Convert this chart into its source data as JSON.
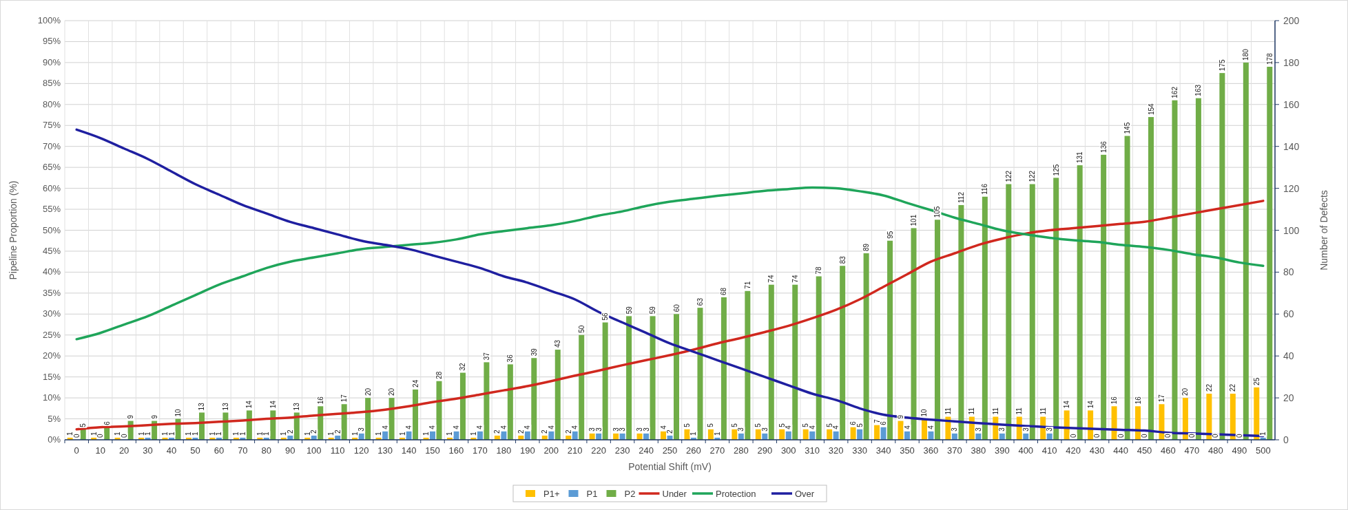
{
  "chart_data": {
    "type": "bar",
    "xlabel": "Potential Shift (mV)",
    "ylabel": "Pipeline Proportion (%)",
    "y2label": "Number of Defects",
    "categories": [
      "0",
      "10",
      "20",
      "30",
      "40",
      "50",
      "60",
      "70",
      "80",
      "90",
      "100",
      "110",
      "120",
      "130",
      "140",
      "150",
      "160",
      "170",
      "180",
      "190",
      "200",
      "210",
      "220",
      "230",
      "240",
      "250",
      "260",
      "270",
      "280",
      "290",
      "300",
      "310",
      "320",
      "330",
      "340",
      "350",
      "360",
      "370",
      "380",
      "390",
      "400",
      "410",
      "420",
      "430",
      "440",
      "450",
      "460",
      "470",
      "480",
      "490",
      "500"
    ],
    "ylim": [
      0,
      100
    ],
    "yticks": [
      {
        "value": 0,
        "label": "0%"
      },
      {
        "value": 5,
        "label": "5%"
      },
      {
        "value": 10,
        "label": "10%"
      },
      {
        "value": 15,
        "label": "15%"
      },
      {
        "value": 20,
        "label": "20%"
      },
      {
        "value": 25,
        "label": "25%"
      },
      {
        "value": 30,
        "label": "30%"
      },
      {
        "value": 35,
        "label": "35%"
      },
      {
        "value": 40,
        "label": "40%"
      },
      {
        "value": 45,
        "label": "45%"
      },
      {
        "value": 50,
        "label": "50%"
      },
      {
        "value": 55,
        "label": "55%"
      },
      {
        "value": 60,
        "label": "60%"
      },
      {
        "value": 65,
        "label": "65%"
      },
      {
        "value": 70,
        "label": "70%"
      },
      {
        "value": 75,
        "label": "75%"
      },
      {
        "value": 80,
        "label": "80%"
      },
      {
        "value": 85,
        "label": "85%"
      },
      {
        "value": 90,
        "label": "90%"
      },
      {
        "value": 95,
        "label": "95%"
      },
      {
        "value": 100,
        "label": "100%"
      }
    ],
    "y2lim": [
      0,
      200
    ],
    "y2ticks": [
      0,
      20,
      40,
      60,
      80,
      100,
      120,
      140,
      160,
      180,
      200
    ],
    "grid": true,
    "legend": "bottom",
    "series": [
      {
        "name": "P1+",
        "type": "bar",
        "axis": "y2",
        "color": "#ffc000",
        "values": [
          1,
          1,
          1,
          1,
          1,
          1,
          1,
          1,
          1,
          1,
          1,
          1,
          1,
          1,
          1,
          1,
          1,
          1,
          2,
          2,
          2,
          2,
          3,
          3,
          3,
          4,
          5,
          5,
          5,
          5,
          5,
          5,
          5,
          6,
          7,
          9,
          10,
          11,
          11,
          11,
          11,
          11,
          14,
          14,
          16,
          16,
          17,
          20,
          22,
          22,
          25
        ],
        "value_labels": [
          "1",
          "1",
          "1",
          "1",
          "1",
          "1",
          "1",
          "1",
          "1",
          "1",
          "1",
          "1",
          "1",
          "1",
          "1",
          "1",
          "1",
          "1",
          "2",
          "2",
          "2",
          "2",
          "3",
          "3",
          "3",
          "4",
          "5",
          "5",
          "5",
          "5",
          "5",
          "5",
          "5",
          "6",
          "7",
          "9",
          "10",
          "11",
          "11",
          "11",
          "11",
          "11",
          "14",
          "14",
          "16",
          "16",
          "17",
          "20",
          "22",
          "22",
          "25"
        ]
      },
      {
        "name": "P1",
        "type": "bar",
        "axis": "y2",
        "color": "#5b9bd5",
        "values": [
          0,
          0,
          0,
          1,
          1,
          1,
          1,
          1,
          1,
          2,
          2,
          2,
          3,
          4,
          4,
          4,
          4,
          4,
          4,
          4,
          4,
          4,
          3,
          3,
          3,
          2,
          1,
          1,
          3,
          3,
          4,
          4,
          4,
          5,
          6,
          4,
          4,
          3,
          3,
          3,
          3,
          3,
          0,
          0,
          0,
          0,
          0,
          0,
          0,
          0,
          1
        ],
        "value_labels": [
          "0",
          "0",
          "0",
          "1",
          "1",
          "1",
          "1",
          "1",
          "1",
          "2",
          "2",
          "2",
          "3",
          "4",
          "4",
          "4",
          "4",
          "4",
          "4",
          "4",
          "4",
          "4",
          "3",
          "3",
          "3",
          "2",
          "1",
          "1",
          "3",
          "3",
          "4",
          "4",
          "4",
          "5",
          "6",
          "4",
          "4",
          "3",
          "3",
          "3",
          "3",
          "3",
          "0",
          "0",
          "0",
          "0",
          "0",
          "0",
          "0",
          "0",
          "1"
        ]
      },
      {
        "name": "P2",
        "type": "bar",
        "axis": "y2",
        "color": "#70ad47",
        "values": [
          5,
          6,
          9,
          9,
          10,
          13,
          13,
          14,
          14,
          13,
          16,
          17,
          20,
          20,
          24,
          28,
          32,
          37,
          36,
          39,
          43,
          50,
          56,
          59,
          59,
          60,
          63,
          68,
          71,
          74,
          74,
          78,
          83,
          89,
          95,
          101,
          105,
          112,
          116,
          122,
          122,
          125,
          131,
          136,
          145,
          154,
          162,
          163,
          175,
          180,
          178
        ],
        "value_labels": [
          "5",
          "6",
          "9",
          "9",
          "10",
          "13",
          "13",
          "14",
          "14",
          "13",
          "16",
          "17",
          "20",
          "20",
          "24",
          "28",
          "32",
          "37",
          "36",
          "39",
          "43",
          "50",
          "56",
          "59",
          "59",
          "60",
          "63",
          "68",
          "71",
          "74",
          "74",
          "78",
          "83",
          "89",
          "95",
          "101",
          "105",
          "112",
          "116",
          "122",
          "122",
          "125",
          "131",
          "136",
          "145",
          "154",
          "162",
          "163",
          "175",
          "180",
          "178"
        ]
      },
      {
        "name": "Under",
        "type": "line",
        "axis": "y",
        "color": "#d0281e",
        "line_style": "solid",
        "marker": "none",
        "values": [
          2.5,
          3,
          3.2,
          3.5,
          3.8,
          4,
          4.3,
          4.6,
          5,
          5.3,
          5.8,
          6.2,
          6.6,
          7.2,
          8,
          9,
          9.8,
          10.8,
          11.8,
          12.8,
          14,
          15.3,
          16.5,
          17.8,
          19,
          20.2,
          21.5,
          23,
          24.3,
          25.7,
          27.2,
          29,
          31,
          33.5,
          36.5,
          39.5,
          42.5,
          44.5,
          46.5,
          48,
          49.2,
          50,
          50.5,
          51,
          51.5,
          52,
          53,
          54,
          55,
          56,
          57
        ]
      },
      {
        "name": "Protection",
        "type": "line",
        "axis": "y",
        "color": "#1fa55a",
        "line_style": "solid",
        "marker": "none",
        "values": [
          24,
          25.5,
          27.5,
          29.5,
          32,
          34.5,
          37,
          39,
          41,
          42.5,
          43.5,
          44.5,
          45.5,
          46,
          46.5,
          47,
          47.8,
          49,
          49.8,
          50.5,
          51.2,
          52.2,
          53.5,
          54.5,
          55.8,
          56.8,
          57.5,
          58.2,
          58.8,
          59.4,
          59.8,
          60.2,
          60,
          59.3,
          58.3,
          56.5,
          54.8,
          53,
          51.5,
          50,
          49,
          48.2,
          47.6,
          47.2,
          46.5,
          46,
          45.3,
          44.3,
          43.5,
          42.3,
          41.5
        ]
      },
      {
        "name": "Over",
        "type": "line",
        "axis": "y",
        "color": "#1f1fa0",
        "line_style": "solid",
        "marker": "none",
        "values": [
          74,
          72,
          69.5,
          67,
          64,
          61,
          58.5,
          56,
          54,
          52,
          50.5,
          49,
          47.5,
          46.5,
          45.5,
          44,
          42.5,
          41,
          39,
          37.5,
          35.5,
          33.5,
          30.5,
          28,
          25.5,
          23,
          21,
          19,
          17,
          15,
          13,
          11,
          9.5,
          7.5,
          6,
          5.3,
          4.8,
          4.4,
          4,
          3.6,
          3.3,
          3,
          2.8,
          2.6,
          2.4,
          2.2,
          1.7,
          1.5,
          1.3,
          1.1,
          0.9
        ]
      }
    ]
  }
}
